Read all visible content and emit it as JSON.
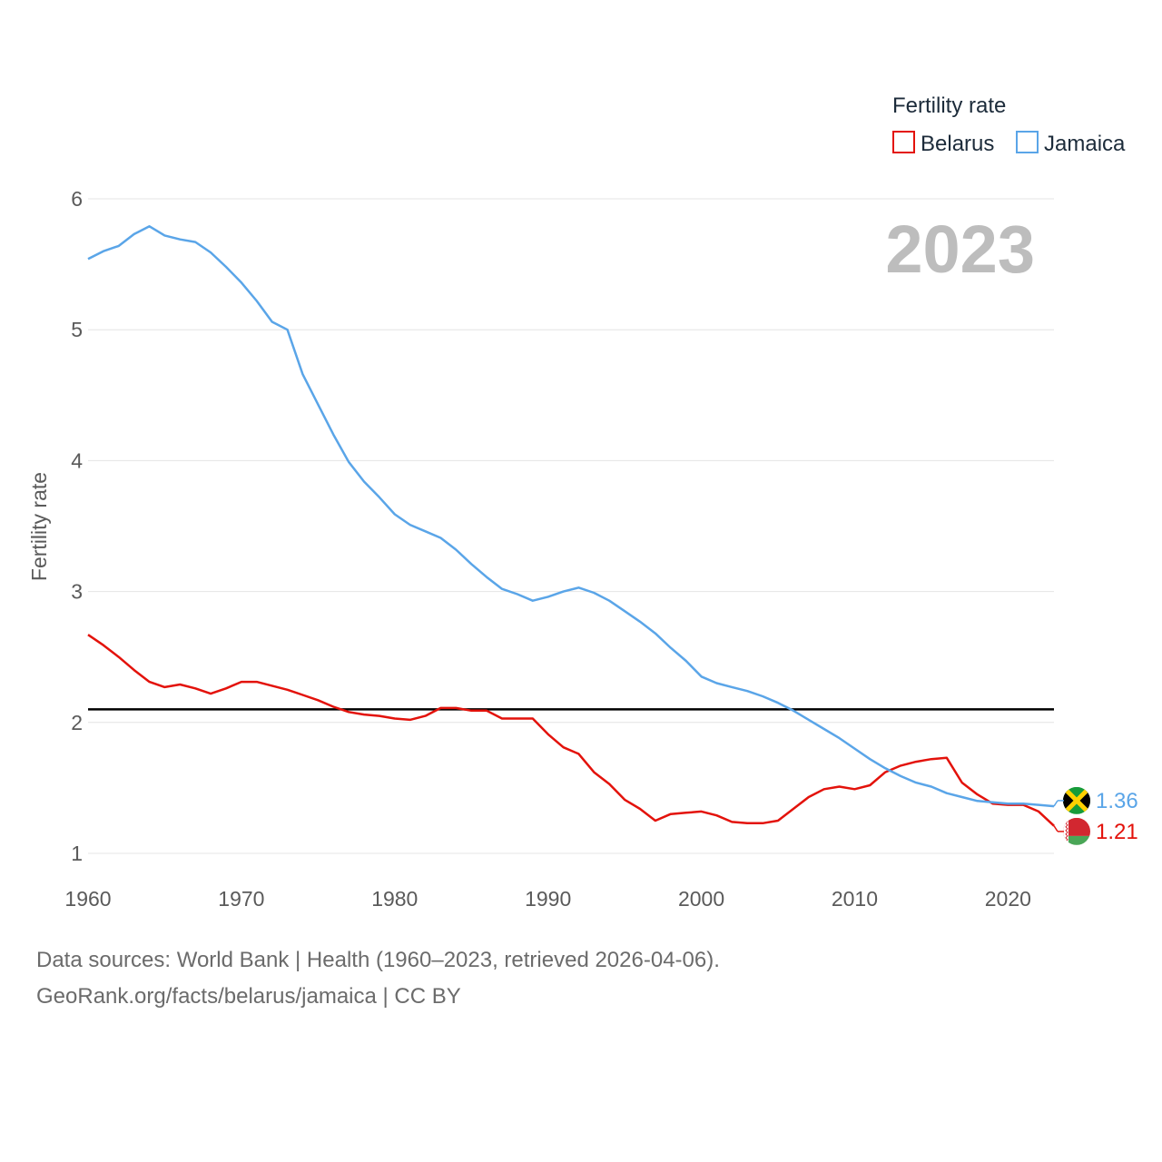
{
  "chart_data": {
    "type": "line",
    "year_label": "2023",
    "ylabel": "Fertility rate",
    "xlabel": "",
    "xlim": [
      1960,
      2023
    ],
    "ylim": [
      1,
      6
    ],
    "yticks": [
      1,
      2,
      3,
      4,
      5,
      6
    ],
    "xticks": [
      1960,
      1970,
      1980,
      1990,
      2000,
      2010,
      2020
    ],
    "reference_line": 2.1,
    "reference_color": "#000000",
    "legend": {
      "title": "Fertility rate",
      "position": "top-right"
    },
    "x": [
      1960,
      1961,
      1962,
      1963,
      1964,
      1965,
      1966,
      1967,
      1968,
      1969,
      1970,
      1971,
      1972,
      1973,
      1974,
      1975,
      1976,
      1977,
      1978,
      1979,
      1980,
      1981,
      1982,
      1983,
      1984,
      1985,
      1986,
      1987,
      1988,
      1989,
      1990,
      1991,
      1992,
      1993,
      1994,
      1995,
      1996,
      1997,
      1998,
      1999,
      2000,
      2001,
      2002,
      2003,
      2004,
      2005,
      2006,
      2007,
      2008,
      2009,
      2010,
      2011,
      2012,
      2013,
      2014,
      2015,
      2016,
      2017,
      2018,
      2019,
      2020,
      2021,
      2022,
      2023
    ],
    "series": [
      {
        "name": "Belarus",
        "color": "#e3120b",
        "end_label": "1.21",
        "values": [
          2.67,
          2.59,
          2.5,
          2.4,
          2.31,
          2.27,
          2.29,
          2.26,
          2.22,
          2.26,
          2.31,
          2.31,
          2.28,
          2.25,
          2.21,
          2.17,
          2.12,
          2.08,
          2.06,
          2.05,
          2.03,
          2.02,
          2.05,
          2.11,
          2.11,
          2.09,
          2.09,
          2.03,
          2.03,
          2.03,
          1.91,
          1.81,
          1.76,
          1.62,
          1.53,
          1.41,
          1.34,
          1.25,
          1.3,
          1.31,
          1.32,
          1.29,
          1.24,
          1.23,
          1.23,
          1.25,
          1.34,
          1.43,
          1.49,
          1.51,
          1.49,
          1.52,
          1.62,
          1.67,
          1.7,
          1.72,
          1.73,
          1.54,
          1.45,
          1.38,
          1.37,
          1.37,
          1.32,
          1.21
        ]
      },
      {
        "name": "Jamaica",
        "color": "#5aa5e8",
        "end_label": "1.36",
        "values": [
          5.54,
          5.6,
          5.64,
          5.73,
          5.79,
          5.72,
          5.69,
          5.67,
          5.59,
          5.48,
          5.36,
          5.22,
          5.06,
          5.0,
          4.66,
          4.43,
          4.2,
          3.99,
          3.84,
          3.72,
          3.59,
          3.51,
          3.46,
          3.41,
          3.32,
          3.21,
          3.11,
          3.02,
          2.98,
          2.93,
          2.96,
          3.0,
          3.03,
          2.99,
          2.93,
          2.85,
          2.77,
          2.68,
          2.57,
          2.47,
          2.35,
          2.3,
          2.27,
          2.24,
          2.2,
          2.15,
          2.09,
          2.02,
          1.95,
          1.88,
          1.8,
          1.72,
          1.65,
          1.59,
          1.54,
          1.51,
          1.46,
          1.43,
          1.4,
          1.39,
          1.38,
          1.38,
          1.37,
          1.36
        ]
      }
    ]
  },
  "footer": {
    "line1": "Data sources: World Bank | Health (1960–2023, retrieved 2026-04-06).",
    "line2": "GeoRank.org/facts/belarus/jamaica | CC BY"
  },
  "flags": {
    "jamaica": {
      "icon": "jamaica-flag-icon",
      "green": "#169b3a",
      "gold": "#fed100",
      "black": "#000000"
    },
    "belarus": {
      "icon": "belarus-flag-icon",
      "red": "#d22730",
      "green": "#4aa657",
      "white": "#ffffff"
    }
  }
}
